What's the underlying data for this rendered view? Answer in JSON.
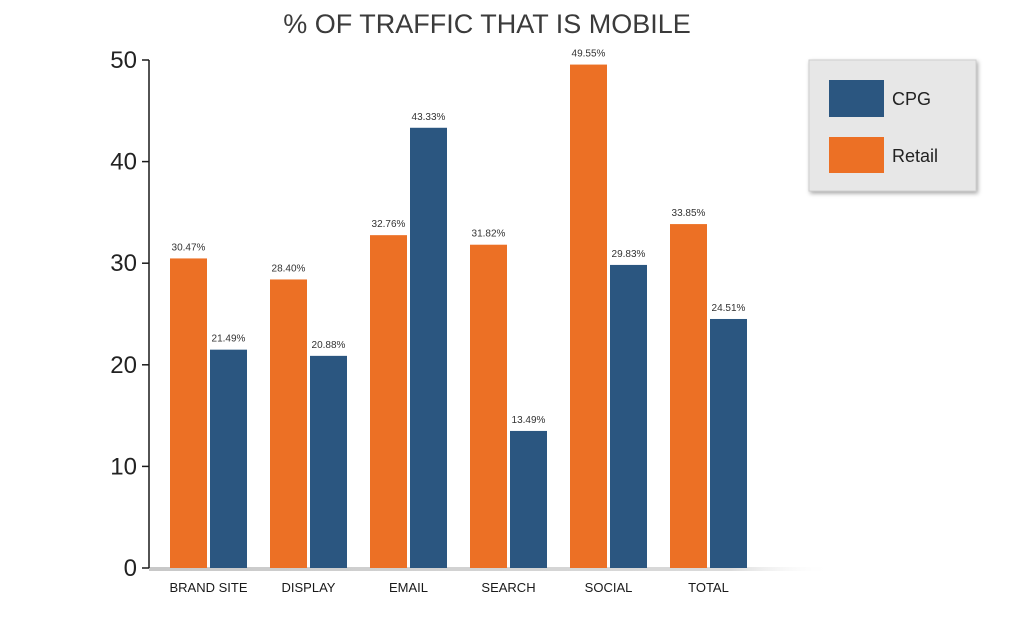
{
  "chart_data": {
    "type": "bar",
    "title": "% OF TRAFFIC THAT IS MOBILE",
    "xlabel": "",
    "ylabel": "",
    "categories": [
      "BRAND SITE",
      "DISPLAY",
      "EMAIL",
      "SEARCH",
      "SOCIAL",
      "TOTAL"
    ],
    "series": [
      {
        "name": "Retail",
        "color": "#ec7025",
        "values": [
          30.47,
          28.4,
          32.76,
          31.82,
          49.55,
          33.85
        ],
        "labels": [
          "30.47%",
          "28.40%",
          "32.76%",
          "31.82%",
          "49.55%",
          "33.85%"
        ]
      },
      {
        "name": "CPG",
        "color": "#2b5680",
        "values": [
          21.49,
          20.88,
          43.33,
          13.49,
          29.83,
          24.51
        ],
        "labels": [
          "21.49%",
          "20.88%",
          "43.33%",
          "13.49%",
          "29.83%",
          "24.51%"
        ]
      }
    ],
    "ylim": [
      0,
      50
    ],
    "yticks": [
      0,
      10,
      20,
      30,
      40,
      50
    ],
    "ytick_labels": [
      "0",
      "10",
      "20",
      "30",
      "40",
      "50"
    ],
    "grid": false,
    "legend": {
      "placement": "top-right",
      "items": [
        "CPG",
        "Retail"
      ]
    }
  }
}
